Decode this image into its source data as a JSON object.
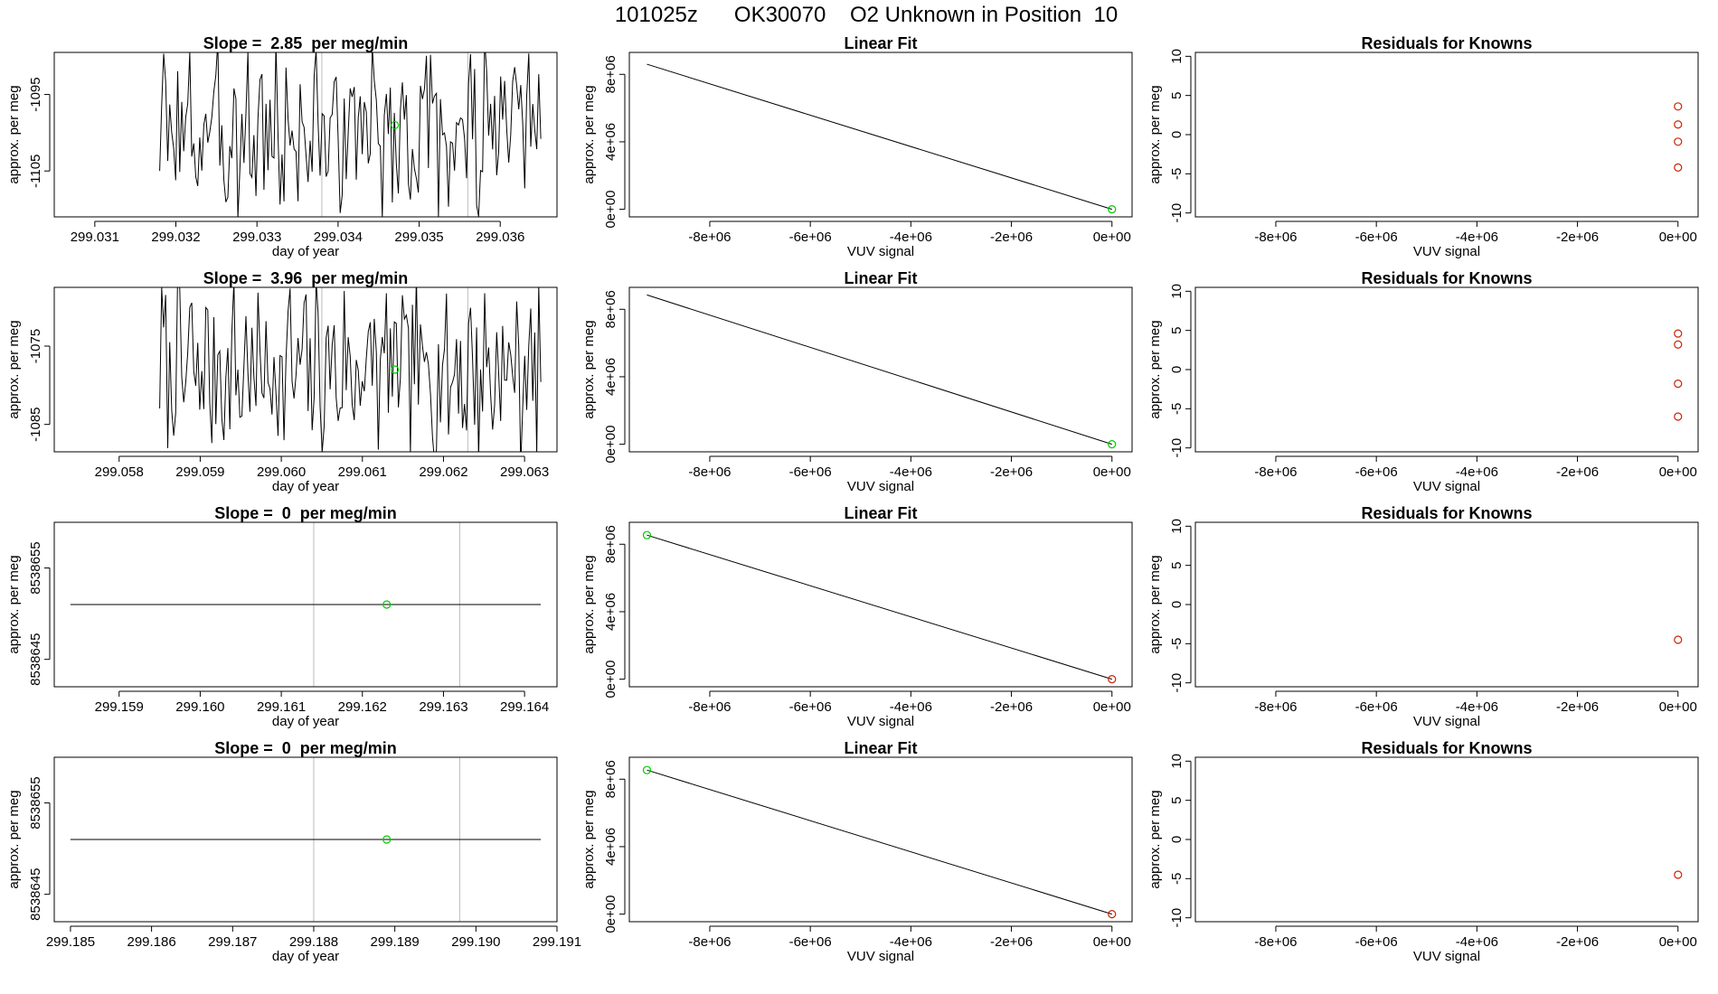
{
  "page_title": "101025z      OK30070    O2 Unknown in Position  10",
  "colors": {
    "axis": "#000000",
    "line": "#000000",
    "known_point": "#00cc00",
    "residual_point": "#cc2200",
    "vline": "#bbbbbb"
  },
  "chart_data": [
    {
      "type": "line",
      "title": "Slope =  2.85  per meg/min",
      "xlabel": "day of year",
      "ylabel": "approx. per meg",
      "xlim": [
        299.0305,
        299.0367
      ],
      "ylim": [
        -1111,
        -1089.5
      ],
      "xticks": [
        299.031,
        299.032,
        299.033,
        299.034,
        299.035,
        299.036
      ],
      "xtick_labels": [
        "299.031",
        "299.032",
        "299.033",
        "299.034",
        "299.035",
        "299.036"
      ],
      "yticks": [
        -1095,
        -1105
      ],
      "ytick_labels": [
        "-1095",
        "-1105"
      ],
      "vlines": [
        299.0338,
        299.0356
      ],
      "point": {
        "x": 299.0347,
        "y": -1099
      },
      "series": [
        {
          "name": "signal",
          "seed": 3,
          "x_start": 299.0318,
          "x_end": 299.0365,
          "center": -1100,
          "amplitude": 9.5
        }
      ]
    },
    {
      "type": "line",
      "title": "Linear Fit",
      "xlabel": "VUV signal",
      "ylabel": "approx. per meg",
      "xlim": [
        -9600000.0,
        400000.0
      ],
      "ylim": [
        -450000.0,
        9300000.0
      ],
      "xticks": [
        -8000000.0,
        -6000000.0,
        -4000000.0,
        -2000000.0,
        0
      ],
      "xtick_labels": [
        "-8e+06",
        "-6e+06",
        "-4e+06",
        "-2e+06",
        "0e+00"
      ],
      "yticks": [
        0,
        4000000.0,
        8000000.0
      ],
      "ytick_labels": [
        "0e+00",
        "4e+06",
        "8e+06"
      ],
      "fit_line": [
        [
          -9250000.0,
          8600000.0
        ],
        [
          0,
          0
        ]
      ],
      "points": [
        {
          "x": 0,
          "y": 0,
          "color": "green"
        }
      ]
    },
    {
      "type": "scatter",
      "title": "Residuals for Knowns",
      "xlabel": "VUV signal",
      "ylabel": "approx. per meg",
      "xlim": [
        -9600000.0,
        400000.0
      ],
      "ylim": [
        -10.5,
        10.5
      ],
      "xticks": [
        -8000000.0,
        -6000000.0,
        -4000000.0,
        -2000000.0,
        0
      ],
      "xtick_labels": [
        "-8e+06",
        "-6e+06",
        "-4e+06",
        "-2e+06",
        "0e+00"
      ],
      "yticks": [
        10,
        5,
        0,
        -5,
        -10
      ],
      "ytick_labels": [
        "10",
        "5",
        "0",
        "-5",
        "-10"
      ],
      "points": [
        {
          "x": 0,
          "y": 3.6
        },
        {
          "x": 0,
          "y": 1.3
        },
        {
          "x": 0,
          "y": -0.9
        },
        {
          "x": 0,
          "y": -4.2
        }
      ]
    },
    {
      "type": "line",
      "title": "Slope =  3.96  per meg/min",
      "xlabel": "day of year",
      "ylabel": "approx. per meg",
      "xlim": [
        299.0572,
        299.0634
      ],
      "ylim": [
        -1088.5,
        -1067.5
      ],
      "xticks": [
        299.058,
        299.059,
        299.06,
        299.061,
        299.062,
        299.063
      ],
      "xtick_labels": [
        "299.058",
        "299.059",
        "299.060",
        "299.061",
        "299.062",
        "299.063"
      ],
      "yticks": [
        -1075,
        -1085
      ],
      "ytick_labels": [
        "-1075",
        "-1085"
      ],
      "vlines": [
        299.0605,
        299.0623
      ],
      "point": {
        "x": 299.0614,
        "y": -1078
      },
      "series": [
        {
          "name": "signal",
          "seed": 7,
          "x_start": 299.0585,
          "x_end": 299.0632,
          "center": -1078,
          "amplitude": 9.5
        }
      ]
    },
    {
      "type": "line",
      "title": "Linear Fit",
      "xlabel": "VUV signal",
      "ylabel": "approx. per meg",
      "xlim": [
        -9600000.0,
        400000.0
      ],
      "ylim": [
        -450000.0,
        9300000.0
      ],
      "xticks": [
        -8000000.0,
        -6000000.0,
        -4000000.0,
        -2000000.0,
        0
      ],
      "xtick_labels": [
        "-8e+06",
        "-6e+06",
        "-4e+06",
        "-2e+06",
        "0e+00"
      ],
      "yticks": [
        0,
        4000000.0,
        8000000.0
      ],
      "ytick_labels": [
        "0e+00",
        "4e+06",
        "8e+06"
      ],
      "fit_line": [
        [
          -9250000.0,
          8850000.0
        ],
        [
          0,
          0
        ]
      ],
      "points": [
        {
          "x": 0,
          "y": 0,
          "color": "green"
        }
      ]
    },
    {
      "type": "scatter",
      "title": "Residuals for Knowns",
      "xlabel": "VUV signal",
      "ylabel": "approx. per meg",
      "xlim": [
        -9600000.0,
        400000.0
      ],
      "ylim": [
        -10.5,
        10.5
      ],
      "xticks": [
        -8000000.0,
        -6000000.0,
        -4000000.0,
        -2000000.0,
        0
      ],
      "xtick_labels": [
        "-8e+06",
        "-6e+06",
        "-4e+06",
        "-2e+06",
        "0e+00"
      ],
      "yticks": [
        10,
        5,
        0,
        -5,
        -10
      ],
      "ytick_labels": [
        "10",
        "5",
        "0",
        "-5",
        "-10"
      ],
      "points": [
        {
          "x": 0,
          "y": 4.6
        },
        {
          "x": 0,
          "y": 3.2
        },
        {
          "x": 0,
          "y": -1.8
        },
        {
          "x": 0,
          "y": -6.0
        }
      ]
    },
    {
      "type": "line",
      "title": "Slope =  0  per meg/min",
      "xlabel": "day of year",
      "ylabel": "approx. per meg",
      "xlim": [
        299.1582,
        299.1644
      ],
      "ylim": [
        8538642,
        8538660
      ],
      "xticks": [
        299.159,
        299.16,
        299.161,
        299.162,
        299.163,
        299.164
      ],
      "xtick_labels": [
        "299.159",
        "299.160",
        "299.161",
        "299.162",
        "299.163",
        "299.164"
      ],
      "yticks": [
        8538655,
        8538645
      ],
      "ytick_labels": [
        "8538655",
        "8538645"
      ],
      "vlines": [
        299.1614,
        299.1632
      ],
      "point": {
        "x": 299.1623,
        "y": 8538651
      },
      "series": [
        {
          "name": "signal",
          "flat": true,
          "x_start": 299.1584,
          "x_end": 299.1642,
          "value": 8538651
        }
      ]
    },
    {
      "type": "line",
      "title": "Linear Fit",
      "xlabel": "VUV signal",
      "ylabel": "approx. per meg",
      "xlim": [
        -9600000.0,
        400000.0
      ],
      "ylim": [
        -450000.0,
        9300000.0
      ],
      "xticks": [
        -8000000.0,
        -6000000.0,
        -4000000.0,
        -2000000.0,
        0
      ],
      "xtick_labels": [
        "-8e+06",
        "-6e+06",
        "-4e+06",
        "-2e+06",
        "0e+00"
      ],
      "yticks": [
        0,
        4000000.0,
        8000000.0
      ],
      "ytick_labels": [
        "0e+00",
        "4e+06",
        "8e+06"
      ],
      "fit_line": [
        [
          -9250000.0,
          8540000.0
        ],
        [
          0,
          0
        ]
      ],
      "points": [
        {
          "x": -9250000.0,
          "y": 8540000.0,
          "color": "green"
        },
        {
          "x": 0,
          "y": 0,
          "color": "red"
        }
      ]
    },
    {
      "type": "scatter",
      "title": "Residuals for Knowns",
      "xlabel": "VUV signal",
      "ylabel": "approx. per meg",
      "xlim": [
        -9600000.0,
        400000.0
      ],
      "ylim": [
        -10.5,
        10.5
      ],
      "xticks": [
        -8000000.0,
        -6000000.0,
        -4000000.0,
        -2000000.0,
        0
      ],
      "xtick_labels": [
        "-8e+06",
        "-6e+06",
        "-4e+06",
        "-2e+06",
        "0e+00"
      ],
      "yticks": [
        10,
        5,
        0,
        -5,
        -10
      ],
      "ytick_labels": [
        "10",
        "5",
        "0",
        "-5",
        "-10"
      ],
      "points": [
        {
          "x": 0,
          "y": -4.5
        }
      ]
    },
    {
      "type": "line",
      "title": "Slope =  0  per meg/min",
      "xlabel": "day of year",
      "ylabel": "approx. per meg",
      "xlim": [
        299.1848,
        299.191
      ],
      "ylim": [
        8538642,
        8538660
      ],
      "xticks": [
        299.185,
        299.186,
        299.187,
        299.188,
        299.189,
        299.19,
        299.191
      ],
      "xtick_labels": [
        "299.185",
        "299.186",
        "299.187",
        "299.188",
        "299.189",
        "299.190",
        "299.191"
      ],
      "yticks": [
        8538655,
        8538645
      ],
      "ytick_labels": [
        "8538655",
        "8538645"
      ],
      "vlines": [
        299.188,
        299.1898
      ],
      "point": {
        "x": 299.1889,
        "y": 8538651
      },
      "series": [
        {
          "name": "signal",
          "flat": true,
          "x_start": 299.185,
          "x_end": 299.1908,
          "value": 8538651
        }
      ]
    },
    {
      "type": "line",
      "title": "Linear Fit",
      "xlabel": "VUV signal",
      "ylabel": "approx. per meg",
      "xlim": [
        -9600000.0,
        400000.0
      ],
      "ylim": [
        -450000.0,
        9300000.0
      ],
      "xticks": [
        -8000000.0,
        -6000000.0,
        -4000000.0,
        -2000000.0,
        0
      ],
      "xtick_labels": [
        "-8e+06",
        "-6e+06",
        "-4e+06",
        "-2e+06",
        "0e+00"
      ],
      "yticks": [
        0,
        4000000.0,
        8000000.0
      ],
      "ytick_labels": [
        "0e+00",
        "4e+06",
        "8e+06"
      ],
      "fit_line": [
        [
          -9250000.0,
          8540000.0
        ],
        [
          0,
          0
        ]
      ],
      "points": [
        {
          "x": -9250000.0,
          "y": 8540000.0,
          "color": "green"
        },
        {
          "x": 0,
          "y": 0,
          "color": "red"
        }
      ]
    },
    {
      "type": "scatter",
      "title": "Residuals for Knowns",
      "xlabel": "VUV signal",
      "ylabel": "approx. per meg",
      "xlim": [
        -9600000.0,
        400000.0
      ],
      "ylim": [
        -10.5,
        10.5
      ],
      "xticks": [
        -8000000.0,
        -6000000.0,
        -4000000.0,
        -2000000.0,
        0
      ],
      "xtick_labels": [
        "-8e+06",
        "-6e+06",
        "-4e+06",
        "-2e+06",
        "0e+00"
      ],
      "yticks": [
        10,
        5,
        0,
        -5,
        -10
      ],
      "ytick_labels": [
        "10",
        "5",
        "0",
        "-5",
        "-10"
      ],
      "points": [
        {
          "x": 0,
          "y": -4.5
        }
      ]
    }
  ]
}
